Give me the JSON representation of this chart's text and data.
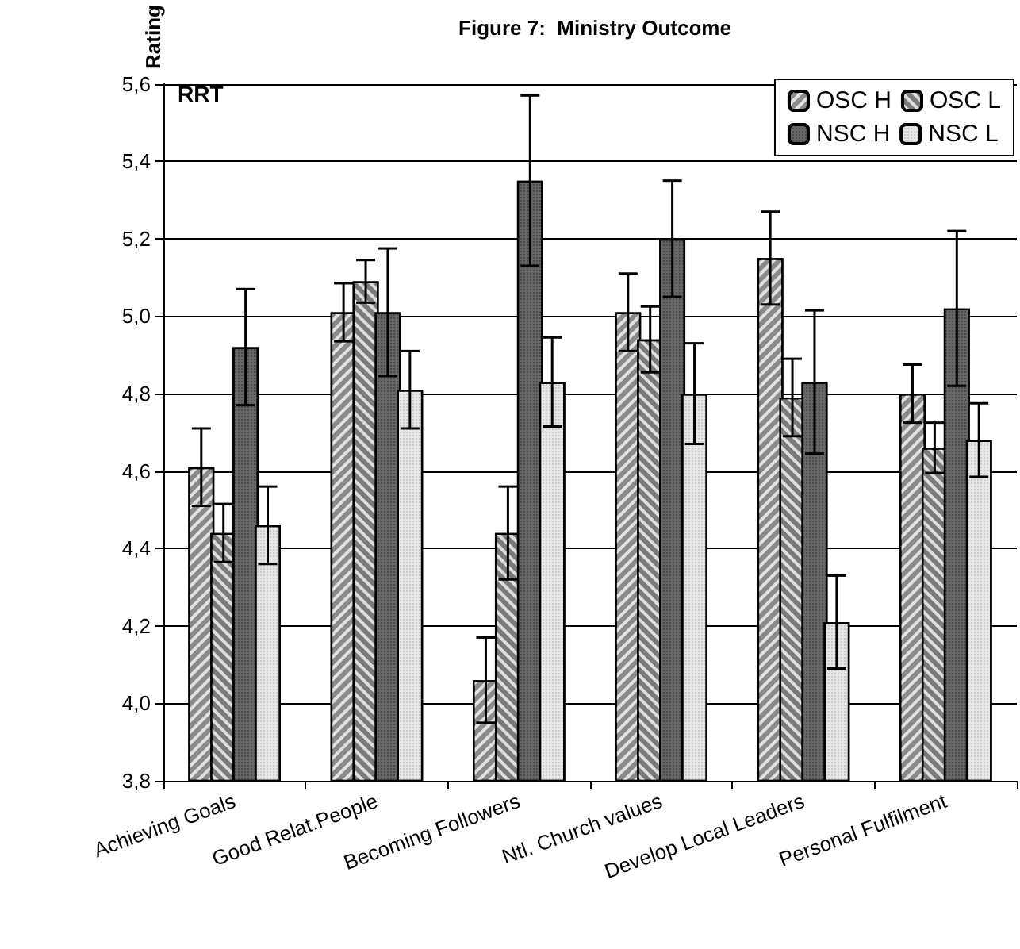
{
  "chart_data": {
    "type": "bar",
    "title": "Figure 7:  Ministry Outcome",
    "ylabel": "Rating",
    "annotations": [
      "RRT"
    ],
    "categories": [
      "Achieving Goals",
      "Good Relat.People",
      "Becoming Followers",
      "Ntl. Church values",
      "Develop Local Leaders",
      "Personal Fulfilment"
    ],
    "series": [
      {
        "name": "OSC H",
        "color": "#8a8a8a",
        "values": [
          4.61,
          5.01,
          4.06,
          5.01,
          5.15,
          4.8
        ],
        "errors": [
          0.1,
          0.075,
          0.11,
          0.1,
          0.12,
          0.075
        ]
      },
      {
        "name": "OSC L",
        "color": "#7a7a7a",
        "values": [
          4.44,
          5.09,
          4.44,
          4.94,
          4.79,
          4.66
        ],
        "errors": [
          0.075,
          0.055,
          0.12,
          0.085,
          0.1,
          0.065
        ]
      },
      {
        "name": "NSC H",
        "color": "#666666",
        "values": [
          4.92,
          5.01,
          5.35,
          5.2,
          4.83,
          5.02
        ],
        "errors": [
          0.15,
          0.165,
          0.22,
          0.15,
          0.185,
          0.2
        ]
      },
      {
        "name": "NSC L",
        "color": "#e6e6e6",
        "values": [
          4.46,
          4.81,
          4.83,
          4.8,
          4.21,
          4.68
        ],
        "errors": [
          0.1,
          0.1,
          0.115,
          0.13,
          0.12,
          0.095
        ]
      }
    ],
    "ylim": [
      3.8,
      5.6
    ],
    "yticks": [
      {
        "value": 3.8,
        "label": "3,8"
      },
      {
        "value": 4.0,
        "label": "4,0"
      },
      {
        "value": 4.2,
        "label": "4,2"
      },
      {
        "value": 4.4,
        "label": "4,4"
      },
      {
        "value": 4.6,
        "label": "4,6"
      },
      {
        "value": 4.8,
        "label": "4,8"
      },
      {
        "value": 5.0,
        "label": "5,0"
      },
      {
        "value": 5.2,
        "label": "5,2"
      },
      {
        "value": 5.4,
        "label": "5,4"
      },
      {
        "value": 5.6,
        "label": "5,6"
      }
    ],
    "grid": "y",
    "legend": "top right"
  }
}
